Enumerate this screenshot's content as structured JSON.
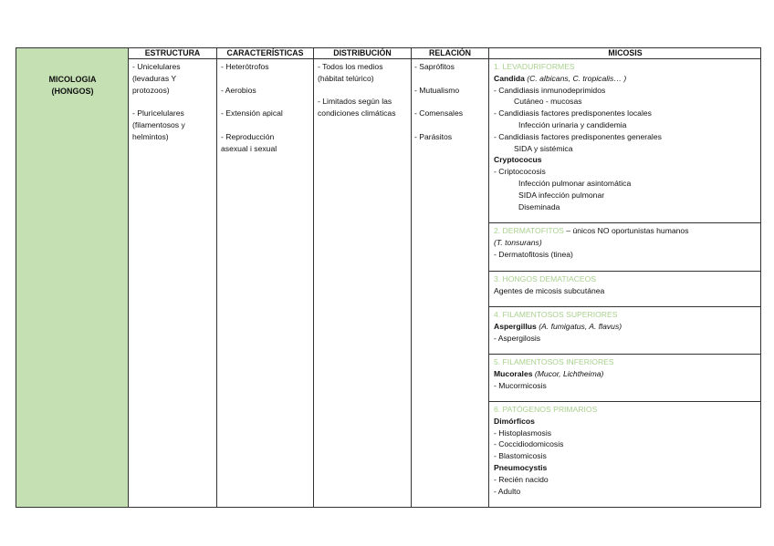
{
  "title_cell": [
    "MICOLOGIA",
    "(HONGOS)"
  ],
  "headers": {
    "estructura": "ESTRUCTURA",
    "caracteristicas": "CARACTERÍSTICAS",
    "distribucion": "DISTRIBUCIÓN",
    "relacion": "RELACIÓN",
    "micosis": "MICOSIS"
  },
  "colors": {
    "header_fill": "#c5e0b3",
    "section_heading": "#a9d18e"
  },
  "estructura": [
    "- Unicelulares",
    "(levaduras Y",
    "protozoos)",
    "",
    "- Pluricelulares",
    "(filamentosos y",
    "helmintos)"
  ],
  "caracteristicas": [
    "- Heterótrofos",
    "",
    "- Aerobios",
    "",
    "- Extensión apical",
    "",
    "- Reproducción",
    "asexual i sexual"
  ],
  "distribucion": [
    "- Todos los medios",
    "(hábitat telúrico)",
    "",
    "- Limitados según las",
    "condiciones climáticas"
  ],
  "relacion": [
    "- Saprófitos",
    "",
    "- Mutualismo",
    "",
    "- Comensales",
    "",
    "- Parásitos"
  ],
  "micosis": [
    {
      "lines": [
        {
          "t": "1. LEVADURIFORMES",
          "k": "h"
        },
        {
          "t": "Candida",
          "k": "b",
          "em": " (C. albicans, C. tropicalis… )"
        },
        {
          "t": "- Candidiasis inmunodeprimidos",
          "k": ""
        },
        {
          "t": "Cutáneo - mucosas",
          "k": "i1"
        },
        {
          "t": "- Candidiasis factores predisponentes locales",
          "k": ""
        },
        {
          "t": "Infección urinaria y candidemia",
          "k": "i2"
        },
        {
          "t": "- Candidiasis factores predisponentes generales",
          "k": ""
        },
        {
          "t": "SIDA y sistémica",
          "k": "i1"
        },
        {
          "t": "Cryptococus",
          "k": "b"
        },
        {
          "t": "- Criptococosis",
          "k": ""
        },
        {
          "t": "Infección pulmonar asintomática",
          "k": "i2"
        },
        {
          "t": "SIDA infección pulmonar",
          "k": "i2"
        },
        {
          "t": "Diseminada",
          "k": "i2"
        }
      ]
    },
    {
      "lines": [
        {
          "t": "2. DERMATOFITOS",
          "k": "h",
          "tail": " – únicos NO oportunistas humanos"
        },
        {
          "t": "",
          "k": "",
          "em": "(T. tonsurans)"
        },
        {
          "t": "- Dermatofitosis (tinea)",
          "k": ""
        }
      ]
    },
    {
      "lines": [
        {
          "t": "3. HONGOS DEMATIACEOS",
          "k": "h"
        },
        {
          "t": "Agentes de micosis subcutánea",
          "k": ""
        }
      ]
    },
    {
      "lines": [
        {
          "t": "4. FILAMENTOSOS SUPERIORES",
          "k": "h"
        },
        {
          "t": "Aspergillus",
          "k": "b",
          "em": " (A. fumigatus, A. flavus)"
        },
        {
          "t": "- Aspergilosis",
          "k": ""
        }
      ]
    },
    {
      "lines": [
        {
          "t": "5. FILAMENTOSOS INFERIORES",
          "k": "h"
        },
        {
          "t": "Mucorales",
          "k": "b",
          "em": " (Mucor, Lichtheima)"
        },
        {
          "t": "- Mucormicosis",
          "k": ""
        }
      ]
    },
    {
      "lines": [
        {
          "t": "6. PATÓGENOS PRIMARIOS",
          "k": "h"
        },
        {
          "t": "Dimórficos",
          "k": "b"
        },
        {
          "t": "- Histoplasmosis",
          "k": ""
        },
        {
          "t": "- Coccidiodomicosis",
          "k": ""
        },
        {
          "t": "- Blastomicosis",
          "k": ""
        },
        {
          "t": "Pneumocystis",
          "k": "b"
        },
        {
          "t": "- Recién nacido",
          "k": ""
        },
        {
          "t": "- Adulto",
          "k": ""
        }
      ]
    }
  ]
}
